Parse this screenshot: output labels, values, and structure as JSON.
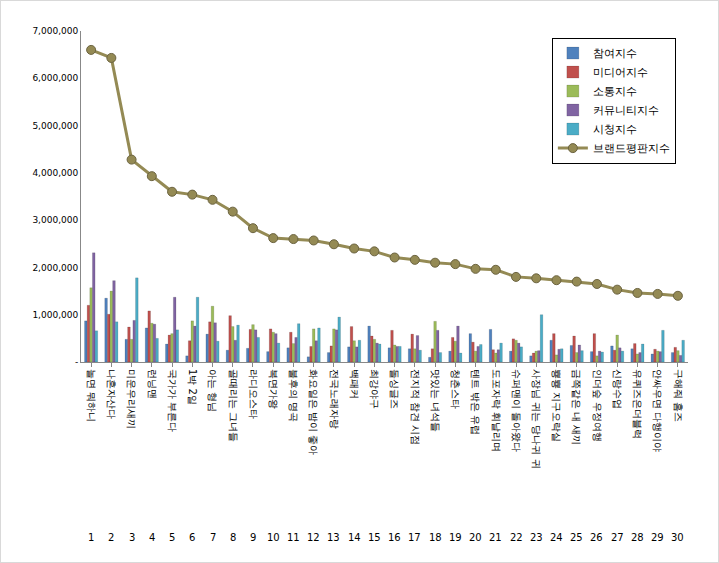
{
  "chart_data": {
    "type": "bar",
    "categories": [
      "놀면 뭐하니",
      "나혼자산다",
      "미운우리새끼",
      "런닝맨",
      "국가가 부른다",
      "1박 2일",
      "아는 형님",
      "골때리는 그녀들",
      "라디오스타",
      "복면가왕",
      "불후의 명곡",
      "화요일은 밤이 좋아",
      "전국노래자랑",
      "백패커",
      "최강야구",
      "돌싱글즈",
      "전지적 참견 시점",
      "맛있는 녀석들",
      "청춘스타",
      "텐트 밖은 유럽",
      "도포자락 휘날리며",
      "슈퍼맨이 돌아왔다",
      "사장님 귀는 당나귀 귀",
      "뿅뿅 지구오락실",
      "금쪽같은 내 새끼",
      "인더숲 우정여행",
      "신랑수업",
      "유퀴즈온더블럭",
      "안싸우면 다행이야",
      "구해줘 홈즈"
    ],
    "ranks": [
      1,
      2,
      3,
      4,
      5,
      6,
      7,
      8,
      9,
      10,
      11,
      12,
      13,
      14,
      15,
      16,
      17,
      18,
      19,
      20,
      21,
      22,
      23,
      24,
      25,
      26,
      27,
      28,
      29,
      30
    ],
    "series": [
      {
        "name": "참여지수",
        "type": "bar",
        "color": "#4f81bd",
        "values": [
          870000,
          1350000,
          480000,
          720000,
          380000,
          130000,
          590000,
          250000,
          290000,
          220000,
          300000,
          110000,
          200000,
          320000,
          760000,
          300000,
          280000,
          100000,
          230000,
          600000,
          690000,
          230000,
          130000,
          460000,
          350000,
          220000,
          340000,
          280000,
          170000,
          200000
        ]
      },
      {
        "name": "미디어지수",
        "type": "bar",
        "color": "#c0504d",
        "values": [
          1200000,
          1010000,
          740000,
          1080000,
          570000,
          450000,
          850000,
          980000,
          690000,
          700000,
          630000,
          330000,
          340000,
          750000,
          550000,
          670000,
          590000,
          280000,
          520000,
          420000,
          260000,
          490000,
          190000,
          600000,
          550000,
          600000,
          250000,
          390000,
          270000,
          310000
        ]
      },
      {
        "name": "소통지수",
        "type": "bar",
        "color": "#9bbb59",
        "values": [
          1570000,
          1500000,
          480000,
          820000,
          600000,
          870000,
          1180000,
          750000,
          790000,
          630000,
          390000,
          700000,
          700000,
          450000,
          480000,
          360000,
          280000,
          860000,
          440000,
          230000,
          190000,
          460000,
          230000,
          150000,
          200000,
          130000,
          570000,
          170000,
          230000,
          240000
        ]
      },
      {
        "name": "커뮤니티지수",
        "type": "bar",
        "color": "#8064a2",
        "values": [
          2310000,
          1720000,
          880000,
          800000,
          1370000,
          760000,
          830000,
          460000,
          680000,
          600000,
          520000,
          450000,
          680000,
          320000,
          400000,
          330000,
          560000,
          670000,
          760000,
          330000,
          260000,
          400000,
          240000,
          270000,
          360000,
          230000,
          300000,
          200000,
          220000,
          140000
        ]
      },
      {
        "name": "시청지수",
        "type": "bar",
        "color": "#4bacc6",
        "values": [
          660000,
          850000,
          1780000,
          500000,
          680000,
          1370000,
          440000,
          780000,
          520000,
          400000,
          810000,
          720000,
          950000,
          460000,
          380000,
          330000,
          250000,
          200000,
          190000,
          370000,
          400000,
          320000,
          1000000,
          280000,
          240000,
          210000,
          230000,
          380000,
          670000,
          460000
        ]
      },
      {
        "name": "브랜드평판지수",
        "type": "line",
        "color": "#948a54",
        "marker": "circle",
        "values": [
          6600000,
          6430000,
          4280000,
          3930000,
          3600000,
          3540000,
          3430000,
          3180000,
          2830000,
          2620000,
          2600000,
          2570000,
          2490000,
          2400000,
          2340000,
          2210000,
          2160000,
          2100000,
          2070000,
          1970000,
          1950000,
          1800000,
          1770000,
          1730000,
          1700000,
          1650000,
          1530000,
          1460000,
          1440000,
          1400000
        ]
      }
    ],
    "ylim": [
      0,
      7000000
    ],
    "yticks": [
      {
        "value": 0,
        "label": "-"
      },
      {
        "value": 1000000,
        "label": "1,000,000"
      },
      {
        "value": 2000000,
        "label": "2,000,000"
      },
      {
        "value": 3000000,
        "label": "3,000,000"
      },
      {
        "value": 4000000,
        "label": "4,000,000"
      },
      {
        "value": 5000000,
        "label": "5,000,000"
      },
      {
        "value": 6000000,
        "label": "6,000,000"
      },
      {
        "value": 7000000,
        "label": "7,000,000"
      }
    ],
    "grid": false,
    "legend": "upper right"
  }
}
